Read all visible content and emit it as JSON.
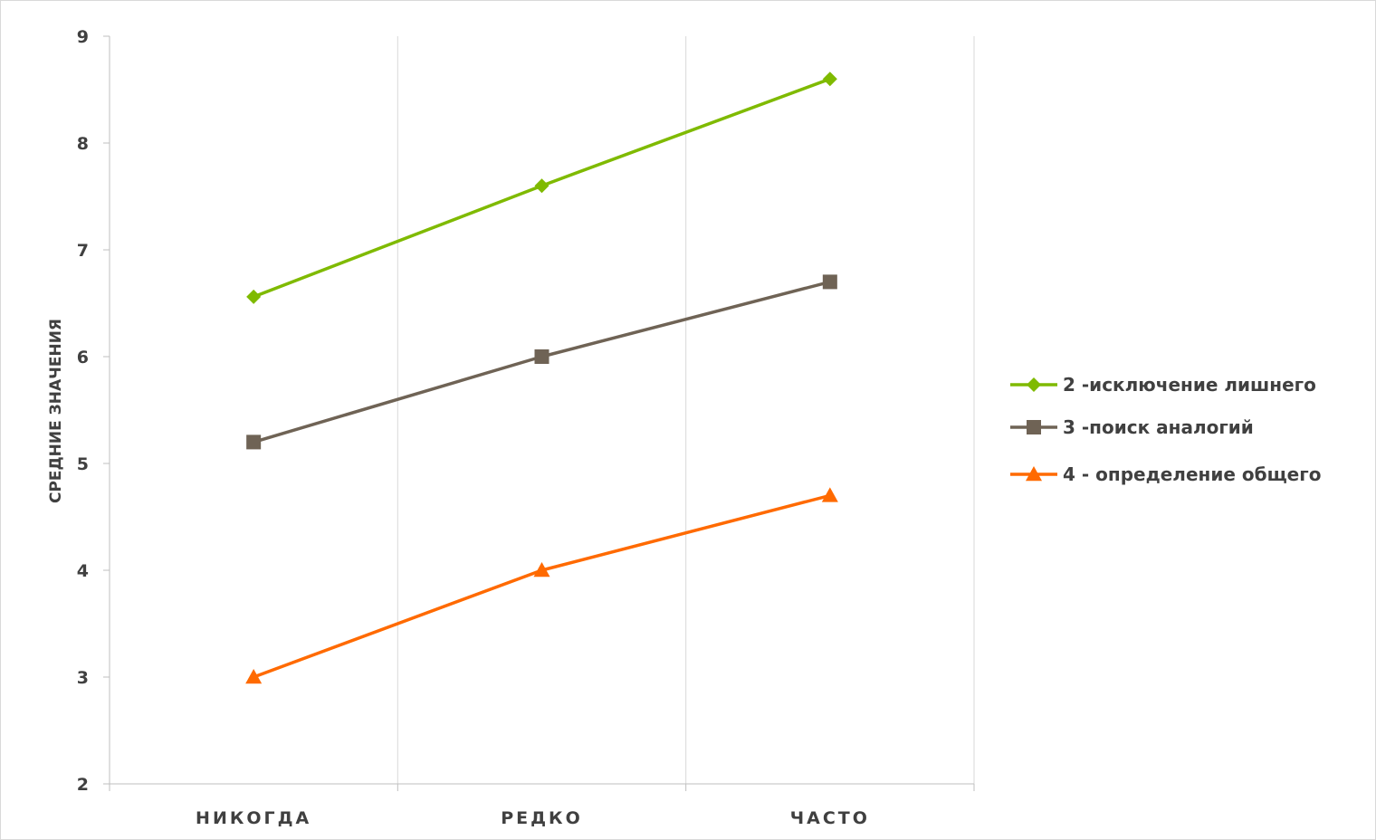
{
  "chart_data": {
    "type": "line",
    "title": "",
    "xlabel": "",
    "ylabel": "СРЕДНИЕ ЗНАЧЕНИЯ",
    "categories": [
      "НИКОГДА",
      "РЕДКО",
      "ЧАСТО"
    ],
    "ylim": [
      2,
      9
    ],
    "yticks": [
      2,
      3,
      4,
      5,
      6,
      7,
      8,
      9
    ],
    "grid": "vertical",
    "legend_position": "right",
    "series": [
      {
        "name": "2 -исключение лишнего",
        "values": [
          6.56,
          7.6,
          8.6
        ],
        "color": "#7fba00",
        "marker": "diamond"
      },
      {
        "name": "3 -поиск аналогий",
        "values": [
          5.2,
          6.0,
          6.7
        ],
        "color": "#6f6355",
        "marker": "square"
      },
      {
        "name": "4 - определение общего",
        "values": [
          3.0,
          4.0,
          4.7
        ],
        "color": "#ff6a00",
        "marker": "triangle"
      }
    ]
  }
}
